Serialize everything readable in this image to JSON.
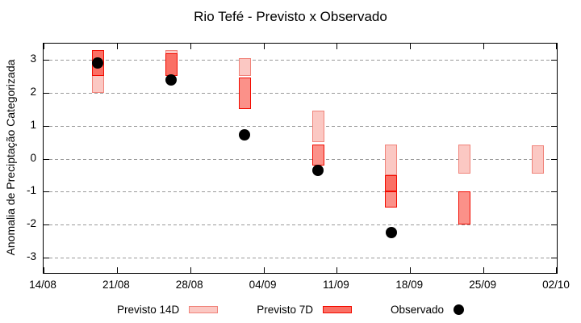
{
  "title": "Rio Tefé - Previsto x Observado",
  "chart_data": {
    "type": "candlestick-forecast-vs-observed",
    "title": "Rio Tefé - Previsto x Observado",
    "xlabel": "",
    "ylabel": "Anomalia de Preciptação Categorizada",
    "ylim": [
      -3.5,
      3.5
    ],
    "ytick_values": [
      3,
      2,
      1,
      0,
      -1,
      -2,
      -3
    ],
    "xtick_labels": [
      "14/08",
      "21/08",
      "28/08",
      "04/09",
      "11/09",
      "18/09",
      "25/09",
      "02/10"
    ],
    "xtick_days": [
      0,
      7,
      14,
      21,
      28,
      35,
      42,
      49
    ],
    "x_total_days": 49,
    "grid": "horizontal-dashed",
    "legend_position": "bottom-center",
    "groups": [
      {
        "date": "19/08",
        "day": 5,
        "previsto14": {
          "low": 2.0,
          "high": 3.3
        },
        "previsto7": [
          {
            "low": 2.5,
            "high": 3.3,
            "shade": "dark"
          }
        ],
        "observado": 2.9
      },
      {
        "date": "26/08",
        "day": 12,
        "previsto14": {
          "low": 2.5,
          "high": 3.3
        },
        "previsto7": [
          {
            "low": 2.5,
            "high": 3.2,
            "shade": "dark"
          }
        ],
        "observado": 2.4
      },
      {
        "date": "02/09",
        "day": 19,
        "previsto14": {
          "low": 2.5,
          "high": 3.05
        },
        "previsto7": [
          {
            "low": 1.5,
            "high": 2.45,
            "shade": "mid"
          }
        ],
        "observado": 0.73
      },
      {
        "date": "09/09",
        "day": 26,
        "previsto14": {
          "low": 0.5,
          "high": 1.45
        },
        "previsto7": [
          {
            "low": -0.2,
            "high": 0.42,
            "shade": "mid"
          }
        ],
        "observado": -0.36
      },
      {
        "date": "16/09",
        "day": 33,
        "previsto14": {
          "low": -0.5,
          "high": 0.43
        },
        "previsto7": [
          {
            "low": -1.0,
            "high": -0.5,
            "shade": "dark"
          },
          {
            "low": -1.47,
            "high": -1.0,
            "shade": "mid"
          }
        ],
        "observado": -2.25
      },
      {
        "date": "23/09",
        "day": 40,
        "previsto14": {
          "low": -0.45,
          "high": 0.42
        },
        "previsto7": [
          {
            "low": -2.0,
            "high": -1.0,
            "shade": "mid"
          }
        ],
        "observado": null
      },
      {
        "date": "30/09",
        "day": 47,
        "previsto14": {
          "low": -0.46,
          "high": 0.41
        },
        "previsto7": [],
        "observado": null
      }
    ],
    "legend": [
      {
        "label": "Previsto 14D",
        "swatch": "box-light"
      },
      {
        "label": "Previsto 7D",
        "swatch": "box-red"
      },
      {
        "label": "Observado",
        "swatch": "dot-black"
      }
    ],
    "colors": {
      "previsto14_fill": "#fbc8c3",
      "previsto14_border": "#f0837a",
      "previsto7_fill_mid": "#fb9189",
      "previsto7_fill_dark": "#fa7065",
      "previsto7_border": "#f20b00",
      "observado": "#000000",
      "grid": "#9a9a9a",
      "frame": "#000000"
    }
  }
}
